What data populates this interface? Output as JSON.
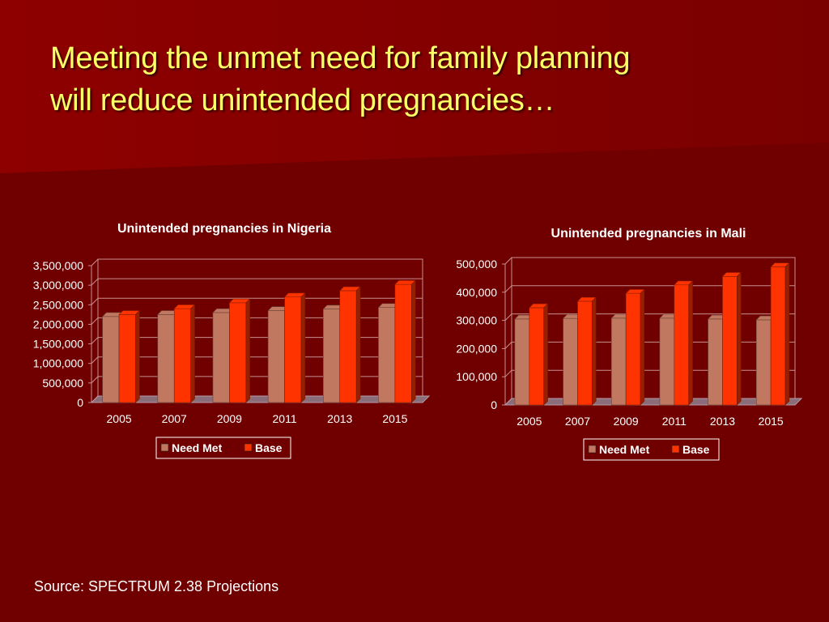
{
  "slide": {
    "title_line1": "Meeting the unmet need for family planning",
    "title_line2": "will reduce unintended pregnancies…",
    "source": "Source: SPECTRUM 2.38 Projections"
  },
  "colors": {
    "background": "#700000",
    "title": "#ffff66",
    "need_met": "#c07860",
    "base": "#ff3300"
  },
  "chart_data": [
    {
      "type": "bar",
      "title": "Unintended pregnancies in Nigeria",
      "categories": [
        "2005",
        "2007",
        "2009",
        "2011",
        "2013",
        "2015"
      ],
      "series": [
        {
          "name": "Need Met",
          "values": [
            2200000,
            2250000,
            2300000,
            2350000,
            2390000,
            2430000
          ]
        },
        {
          "name": "Base",
          "values": [
            2250000,
            2400000,
            2550000,
            2700000,
            2860000,
            3020000
          ]
        }
      ],
      "ylim": [
        0,
        3500000
      ],
      "yticks": [
        "0",
        "500,000",
        "1,000,000",
        "1,500,000",
        "2,000,000",
        "2,500,000",
        "3,000,000",
        "3,500,000"
      ],
      "legend": "bottom",
      "grid": true,
      "style": "3d-clustered"
    },
    {
      "type": "bar",
      "title": "Unintended pregnancies in Mali",
      "categories": [
        "2005",
        "2007",
        "2009",
        "2011",
        "2013",
        "2015"
      ],
      "series": [
        {
          "name": "Need Met",
          "values": [
            305000,
            307000,
            308000,
            308000,
            305000,
            302000
          ]
        },
        {
          "name": "Base",
          "values": [
            345000,
            368000,
            396000,
            426000,
            456000,
            490000
          ]
        }
      ],
      "ylim": [
        0,
        500000
      ],
      "yticks": [
        "0",
        "100,000",
        "200,000",
        "300,000",
        "400,000",
        "500,000"
      ],
      "legend": "bottom",
      "grid": true,
      "style": "3d-clustered"
    }
  ]
}
